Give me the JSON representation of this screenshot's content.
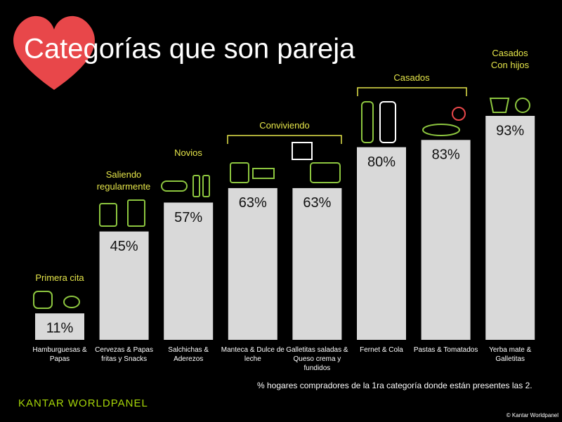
{
  "chart_data": {
    "type": "bar",
    "title": "Categorías que son pareja",
    "categories": [
      "Hamburguesas & Papas",
      "Cervezas & Papas fritas y Snacks",
      "Salchichas & Aderezos",
      "Manteca & Dulce de leche",
      "Galletitas saladas & Queso crema y fundidos",
      "Fernet & Cola",
      "Pastas & Tomatados",
      "Yerba mate & Galletitas"
    ],
    "values": [
      11,
      45,
      57,
      63,
      63,
      80,
      83,
      93
    ],
    "value_labels": [
      "11%",
      "45%",
      "57%",
      "63%",
      "63%",
      "80%",
      "83%",
      "93%"
    ],
    "color": "#d9d9d9",
    "stages": [
      "Primera cita",
      "Saliendo regularmente",
      "Novios",
      "Conviviendo",
      "Casados",
      "Casados Con hijos"
    ],
    "footnote": "% hogares compradores de la 1ra categoría donde están presentes las 2.",
    "brand": "KANTAR WORLDPANEL",
    "copyright": "© Kantar Worldpanel"
  }
}
